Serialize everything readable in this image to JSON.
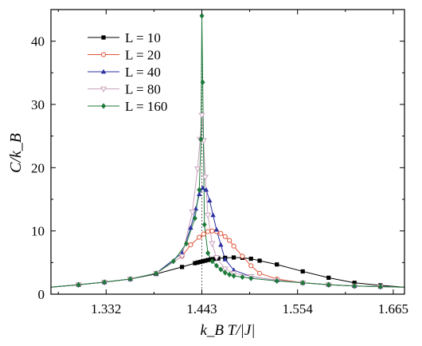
{
  "chart_data": {
    "type": "line",
    "title": "",
    "xlabel": "k_B T/|J|",
    "ylabel": "C/k_B",
    "xlim": [
      1.268,
      1.678
    ],
    "ylim": [
      0,
      45
    ],
    "xticks": [
      1.332,
      1.443,
      1.554,
      1.665
    ],
    "xtick_labels": [
      "1.332",
      "1.443",
      "1.554",
      "1.665"
    ],
    "yticks": [
      0,
      10,
      20,
      30,
      40
    ],
    "ytick_labels": [
      "0",
      "10",
      "20",
      "30",
      "40"
    ],
    "critical_line_x": 1.443,
    "legend": {
      "placement": "top-left"
    },
    "series": [
      {
        "name": "L = 10",
        "color": "#000000",
        "marker": "square",
        "x": [
          1.268,
          1.3,
          1.33,
          1.36,
          1.39,
          1.42,
          1.435,
          1.438,
          1.441,
          1.444,
          1.447,
          1.45,
          1.453,
          1.456,
          1.459,
          1.462,
          1.47,
          1.48,
          1.49,
          1.5,
          1.51,
          1.53,
          1.56,
          1.59,
          1.62,
          1.65,
          1.678
        ],
        "y": [
          1.1,
          1.5,
          1.9,
          2.4,
          3.2,
          4.3,
          4.9,
          5.0,
          5.1,
          5.2,
          5.3,
          5.4,
          5.5,
          5.55,
          5.6,
          5.65,
          5.75,
          5.8,
          5.75,
          5.6,
          5.3,
          4.7,
          3.6,
          2.6,
          1.8,
          1.4,
          1.1
        ]
      },
      {
        "name": "L = 20",
        "color": "#e0563a",
        "marker": "circle",
        "x": [
          1.268,
          1.3,
          1.33,
          1.36,
          1.39,
          1.42,
          1.43,
          1.44,
          1.445,
          1.45,
          1.455,
          1.46,
          1.465,
          1.47,
          1.475,
          1.48,
          1.49,
          1.5,
          1.51,
          1.53,
          1.56,
          1.59,
          1.62,
          1.65,
          1.678
        ],
        "y": [
          1.1,
          1.5,
          1.9,
          2.4,
          3.3,
          6.0,
          7.8,
          9.0,
          9.5,
          9.9,
          10.0,
          9.9,
          9.6,
          9.1,
          8.5,
          7.6,
          6.0,
          4.5,
          3.3,
          2.4,
          1.8,
          1.5,
          1.3,
          1.2,
          1.1
        ]
      },
      {
        "name": "L = 40",
        "color": "#2b2fa0",
        "marker": "triangle-up",
        "x": [
          1.268,
          1.3,
          1.33,
          1.36,
          1.39,
          1.42,
          1.43,
          1.436,
          1.44,
          1.444,
          1.448,
          1.452,
          1.456,
          1.46,
          1.465,
          1.47,
          1.48,
          1.5,
          1.53,
          1.56,
          1.59,
          1.62,
          1.65,
          1.678
        ],
        "y": [
          1.1,
          1.5,
          1.9,
          2.4,
          3.3,
          6.5,
          10.5,
          13.5,
          15.8,
          16.8,
          16.5,
          14.8,
          12.5,
          10.2,
          7.8,
          5.5,
          3.8,
          2.8,
          2.2,
          1.8,
          1.5,
          1.3,
          1.2,
          1.1
        ]
      },
      {
        "name": "L = 80",
        "color": "#c9a2bc",
        "marker": "triangle-down",
        "x": [
          1.268,
          1.3,
          1.33,
          1.36,
          1.39,
          1.42,
          1.432,
          1.438,
          1.441,
          1.443,
          1.445,
          1.447,
          1.45,
          1.455,
          1.46,
          1.47,
          1.48,
          1.5,
          1.53,
          1.56,
          1.59,
          1.62,
          1.65,
          1.678
        ],
        "y": [
          1.1,
          1.5,
          1.9,
          2.4,
          3.3,
          6.0,
          13.0,
          19.8,
          24.5,
          28.3,
          24.3,
          18.5,
          12.5,
          8.0,
          5.8,
          4.0,
          3.3,
          2.8,
          2.2,
          1.8,
          1.5,
          1.3,
          1.2,
          1.1
        ]
      },
      {
        "name": "L = 160",
        "color": "#1d7a3a",
        "marker": "diamond",
        "x": [
          1.268,
          1.3,
          1.33,
          1.36,
          1.39,
          1.41,
          1.425,
          1.435,
          1.44,
          1.442,
          1.443,
          1.444,
          1.446,
          1.45,
          1.455,
          1.46,
          1.465,
          1.47,
          1.475,
          1.48,
          1.49,
          1.5,
          1.53,
          1.56,
          1.59,
          1.62,
          1.65,
          1.678
        ],
        "y": [
          1.1,
          1.5,
          1.9,
          2.4,
          3.3,
          5.2,
          8.0,
          12.0,
          16.5,
          24.5,
          44.0,
          33.5,
          11.0,
          6.5,
          5.2,
          4.5,
          3.9,
          3.4,
          3.1,
          2.9,
          2.7,
          2.5,
          2.1,
          1.8,
          1.5,
          1.3,
          1.2,
          1.1
        ]
      }
    ]
  }
}
